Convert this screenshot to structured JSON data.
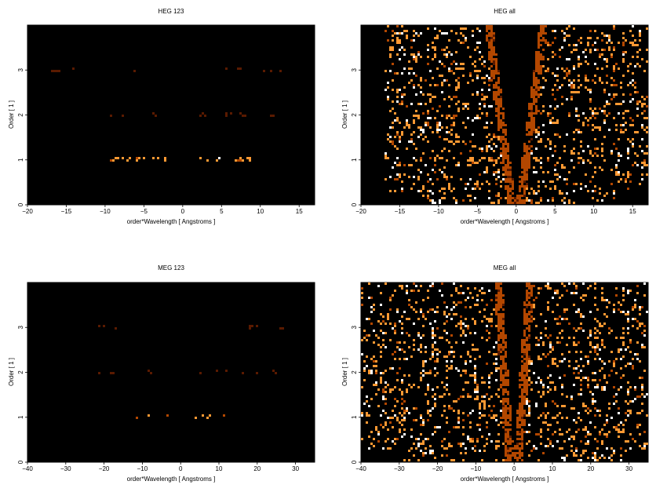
{
  "chart_data": [
    {
      "type": "heatmap",
      "title": "HEG 123",
      "xlabel": "order*Wavelength [ Angstroms ]",
      "ylabel": "Order [ 1 ]",
      "xlim": [
        -20,
        17
      ],
      "ylim": [
        0,
        4
      ],
      "xticks": [
        -20,
        -15,
        -10,
        -5,
        0,
        5,
        10,
        15
      ],
      "yticks": [
        0,
        1,
        2,
        3
      ],
      "grid": false,
      "background": "#000000",
      "colormap": [
        "#000000",
        "#5a1a00",
        "#b34700",
        "#ff9933",
        "#ffffff"
      ],
      "features": [
        {
          "kind": "band",
          "order": 1.0,
          "x_range": [
            -9.5,
            -2
          ],
          "intensity": 0.9
        },
        {
          "kind": "band",
          "order": 1.0,
          "x_range": [
            2,
            9.5
          ],
          "intensity": 0.9
        },
        {
          "kind": "band",
          "order": 2.0,
          "x_range": [
            -12,
            -3
          ],
          "intensity": 0.3
        },
        {
          "kind": "band",
          "order": 2.0,
          "x_range": [
            2,
            12
          ],
          "intensity": 0.3
        },
        {
          "kind": "band",
          "order": 3.0,
          "x_range": [
            -18,
            -3
          ],
          "intensity": 0.2
        },
        {
          "kind": "band",
          "order": 3.0,
          "x_range": [
            3,
            15
          ],
          "intensity": 0.2
        }
      ]
    },
    {
      "type": "heatmap",
      "title": "HEG all",
      "xlabel": "order*Wavelength [ Angstroms ]",
      "ylabel": "Order [ 1 ]",
      "xlim": [
        -20,
        17
      ],
      "ylim": [
        0,
        4
      ],
      "xticks": [
        -20,
        -15,
        -10,
        -5,
        0,
        5,
        10,
        15
      ],
      "yticks": [
        0,
        1,
        2,
        3
      ],
      "grid": false,
      "background": "#000000",
      "colormap": [
        "#000000",
        "#5a1a00",
        "#b34700",
        "#ff9933",
        "#ffffff"
      ],
      "features": [
        {
          "kind": "wedge",
          "x_range": [
            -17,
            17
          ],
          "excluded_cone_left_top": -3,
          "excluded_cone_right_top": 3,
          "intensity": 0.5
        },
        {
          "kind": "band",
          "order": 1.0,
          "x_range": [
            -13,
            -2
          ],
          "intensity": 0.9
        },
        {
          "kind": "band",
          "order": 1.0,
          "x_range": [
            2,
            8
          ],
          "intensity": 0.9
        },
        {
          "kind": "band",
          "order": 0.3,
          "x_range": [
            -13,
            -9
          ],
          "intensity": 1.0
        }
      ]
    },
    {
      "type": "heatmap",
      "title": "MEG 123",
      "xlabel": "order*Wavelength [ Angstroms ]",
      "ylabel": "Order [ 1 ]",
      "xlim": [
        -40,
        35
      ],
      "ylim": [
        0,
        4
      ],
      "xticks": [
        -40,
        -30,
        -20,
        -10,
        0,
        10,
        20,
        30
      ],
      "yticks": [
        0,
        1,
        2,
        3
      ],
      "grid": false,
      "background": "#000000",
      "colormap": [
        "#000000",
        "#5a1a00",
        "#b34700",
        "#ff9933",
        "#ffffff"
      ],
      "features": [
        {
          "kind": "band",
          "order": 1.0,
          "x_range": [
            -12,
            -3
          ],
          "intensity": 0.9
        },
        {
          "kind": "band",
          "order": 1.0,
          "x_range": [
            3,
            12
          ],
          "intensity": 0.9
        },
        {
          "kind": "band",
          "order": 2.0,
          "x_range": [
            -25,
            -5
          ],
          "intensity": 0.25
        },
        {
          "kind": "band",
          "order": 2.0,
          "x_range": [
            5,
            25
          ],
          "intensity": 0.25
        },
        {
          "kind": "band",
          "order": 3.0,
          "x_range": [
            -30,
            -5
          ],
          "intensity": 0.2
        },
        {
          "kind": "band",
          "order": 3.0,
          "x_range": [
            5,
            30
          ],
          "intensity": 0.2
        }
      ]
    },
    {
      "type": "heatmap",
      "title": "MEG all",
      "xlabel": "order*Wavelength [ Angstroms ]",
      "ylabel": "Order [ 1 ]",
      "xlim": [
        -40,
        35
      ],
      "ylim": [
        0,
        4
      ],
      "xticks": [
        -40,
        -30,
        -20,
        -10,
        0,
        10,
        20,
        30
      ],
      "yticks": [
        0,
        1,
        2,
        3
      ],
      "grid": false,
      "background": "#000000",
      "colormap": [
        "#000000",
        "#5a1a00",
        "#b34700",
        "#ff9933",
        "#ffffff"
      ],
      "features": [
        {
          "kind": "wedge",
          "x_range": [
            -40,
            35
          ],
          "excluded_cone_left_top": -3,
          "excluded_cone_right_top": 3,
          "intensity": 0.5
        },
        {
          "kind": "band",
          "order": 1.0,
          "x_range": [
            -12,
            -3
          ],
          "intensity": 0.9
        },
        {
          "kind": "band",
          "order": 1.0,
          "x_range": [
            3,
            12
          ],
          "intensity": 0.9
        },
        {
          "kind": "band",
          "order": 0.5,
          "x_range": [
            -27,
            -18
          ],
          "intensity": 1.0
        }
      ]
    }
  ]
}
